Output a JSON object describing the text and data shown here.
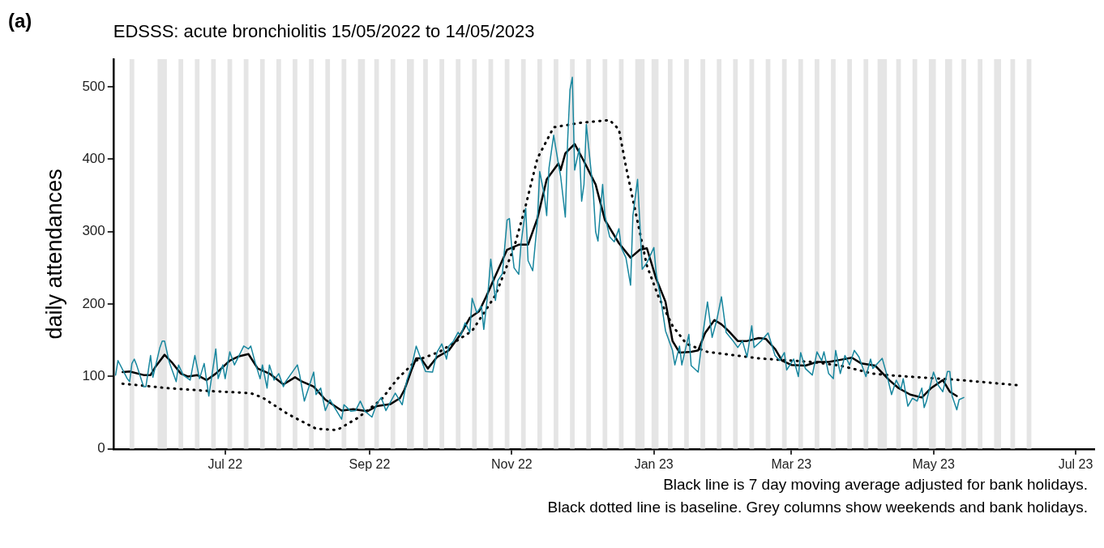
{
  "chart_data": {
    "type": "line",
    "title": "EDSSS: acute bronchiolitis 15/05/2022 to 14/05/2023",
    "ylabel": "daily attendances",
    "annotations": [
      "(a)",
      "Black line is 7 day moving average adjusted for bank holidays.",
      "Black dotted line is baseline. Grey columns show weekends and bank holidays."
    ],
    "xlim": [
      "2022-05-14",
      "2023-07-09"
    ],
    "xticks": [
      {
        "value": "2022-07-01",
        "label": "Jul 22"
      },
      {
        "value": "2022-09-01",
        "label": "Sep 22"
      },
      {
        "value": "2022-11-01",
        "label": "Nov 22"
      },
      {
        "value": "2023-01-01",
        "label": "Jan 23"
      },
      {
        "value": "2023-03-01",
        "label": "Mar 23"
      },
      {
        "value": "2023-05-01",
        "label": "May 23"
      },
      {
        "value": "2023-07-01",
        "label": "Jul 23"
      }
    ],
    "ylim": [
      0,
      538
    ],
    "yticks": [
      0,
      100,
      200,
      300,
      400,
      500
    ],
    "grid": false,
    "legend": false,
    "series": [
      {
        "color": "#17869e",
        "line_style": "solid",
        "x": [
          "2022-05-15",
          "2022-05-16",
          "2022-05-20",
          "2022-05-21",
          "2022-05-22",
          "2022-05-23",
          "2022-05-24",
          "2022-05-27",
          "2022-05-28",
          "2022-05-30",
          "2022-05-31",
          "2022-06-03",
          "2022-06-04",
          "2022-06-05",
          "2022-06-07",
          "2022-06-10",
          "2022-06-11",
          "2022-06-13",
          "2022-06-16",
          "2022-06-18",
          "2022-06-20",
          "2022-06-22",
          "2022-06-24",
          "2022-06-27",
          "2022-06-28",
          "2022-06-30",
          "2022-07-01",
          "2022-07-03",
          "2022-07-05",
          "2022-07-09",
          "2022-07-11",
          "2022-07-12",
          "2022-07-14",
          "2022-07-16",
          "2022-07-17",
          "2022-07-19",
          "2022-07-20",
          "2022-07-22",
          "2022-07-24",
          "2022-07-26",
          "2022-07-27",
          "2022-08-01",
          "2022-08-02",
          "2022-08-04",
          "2022-08-08",
          "2022-08-09",
          "2022-08-11",
          "2022-08-13",
          "2022-08-15",
          "2022-08-17",
          "2022-08-20",
          "2022-08-21",
          "2022-08-24",
          "2022-08-26",
          "2022-08-28",
          "2022-08-30",
          "2022-09-02",
          "2022-09-04",
          "2022-09-06",
          "2022-09-08",
          "2022-09-12",
          "2022-09-15",
          "2022-09-17",
          "2022-09-19",
          "2022-09-21",
          "2022-09-25",
          "2022-09-28",
          "2022-09-30",
          "2022-10-02",
          "2022-10-04",
          "2022-10-05",
          "2022-10-07",
          "2022-10-09",
          "2022-10-10",
          "2022-10-12",
          "2022-10-14",
          "2022-10-15",
          "2022-10-17",
          "2022-10-19",
          "2022-10-20",
          "2022-10-22",
          "2022-10-23",
          "2022-10-25",
          "2022-10-26",
          "2022-10-28",
          "2022-10-30",
          "2022-10-31",
          "2022-11-01",
          "2022-11-02",
          "2022-11-04",
          "2022-11-05",
          "2022-11-07",
          "2022-11-08",
          "2022-11-10",
          "2022-11-12",
          "2022-11-13",
          "2022-11-15",
          "2022-11-16",
          "2022-11-17",
          "2022-11-19",
          "2022-11-21",
          "2022-11-22",
          "2022-11-24",
          "2022-11-25",
          "2022-11-26",
          "2022-11-27",
          "2022-11-28",
          "2022-11-30",
          "2022-12-01",
          "2022-12-02",
          "2022-12-03",
          "2022-12-05",
          "2022-12-06",
          "2022-12-07",
          "2022-12-08",
          "2022-12-10",
          "2022-12-11",
          "2022-12-13",
          "2022-12-15",
          "2022-12-17",
          "2022-12-18",
          "2022-12-20",
          "2022-12-22",
          "2022-12-23",
          "2022-12-25",
          "2022-12-27",
          "2022-12-29",
          "2023-01-01",
          "2023-01-02",
          "2023-01-04",
          "2023-01-06",
          "2023-01-09",
          "2023-01-10",
          "2023-01-12",
          "2023-01-13",
          "2023-01-16",
          "2023-01-17",
          "2023-01-20",
          "2023-01-22",
          "2023-01-24",
          "2023-01-26",
          "2023-01-28",
          "2023-01-30",
          "2023-02-01",
          "2023-02-04",
          "2023-02-06",
          "2023-02-08",
          "2023-02-10",
          "2023-02-12",
          "2023-02-13",
          "2023-02-16",
          "2023-02-19",
          "2023-02-22",
          "2023-02-24",
          "2023-02-26",
          "2023-02-27",
          "2023-03-02",
          "2023-03-04",
          "2023-03-05",
          "2023-03-07",
          "2023-03-10",
          "2023-03-12",
          "2023-03-14",
          "2023-03-15",
          "2023-03-17",
          "2023-03-19",
          "2023-03-20",
          "2023-03-22",
          "2023-03-24",
          "2023-03-26",
          "2023-03-28",
          "2023-03-30",
          "2023-04-02",
          "2023-04-04",
          "2023-04-05",
          "2023-04-09",
          "2023-04-11",
          "2023-04-13",
          "2023-04-15",
          "2023-04-17",
          "2023-04-18",
          "2023-04-20",
          "2023-04-22",
          "2023-04-24",
          "2023-04-26",
          "2023-04-27",
          "2023-04-28",
          "2023-05-01",
          "2023-05-03",
          "2023-05-05",
          "2023-05-07",
          "2023-05-08",
          "2023-05-09",
          "2023-05-11",
          "2023-05-12",
          "2023-05-14"
        ],
        "values": [
          102,
          122,
          97,
          93,
          118,
          124,
          116,
          86,
          86,
          129,
          99,
          140,
          149,
          149,
          120,
          93,
          116,
          102,
          95,
          129,
          97,
          118,
          73,
          138,
          97,
          116,
          97,
          134,
          116,
          142,
          138,
          142,
          118,
          97,
          116,
          84,
          116,
          95,
          104,
          86,
          93,
          116,
          102,
          66,
          106,
          75,
          84,
          53,
          68,
          57,
          41,
          61,
          52,
          53,
          66,
          52,
          44,
          62,
          71,
          53,
          77,
          61,
          95,
          113,
          142,
          107,
          106,
          134,
          145,
          124,
          142,
          149,
          161,
          156,
          174,
          161,
          208,
          188,
          197,
          165,
          223,
          262,
          205,
          232,
          242,
          316,
          318,
          278,
          250,
          241,
          284,
          332,
          260,
          246,
          314,
          383,
          350,
          322,
          388,
          433,
          394,
          376,
          320,
          426,
          496,
          513,
          385,
          415,
          342,
          365,
          448,
          385,
          354,
          300,
          287,
          365,
          322,
          293,
          286,
          304,
          278,
          264,
          226,
          322,
          372,
          248,
          257,
          278,
          242,
          206,
          163,
          136,
          116,
          142,
          116,
          158,
          115,
          106,
          158,
          203,
          154,
          178,
          210,
          161,
          149,
          140,
          149,
          127,
          170,
          140,
          149,
          160,
          129,
          122,
          133,
          109,
          124,
          100,
          133,
          111,
          102,
          134,
          122,
          134,
          104,
          97,
          136,
          104,
          129,
          116,
          136,
          127,
          100,
          124,
          111,
          125,
          102,
          75,
          95,
          82,
          97,
          59,
          70,
          66,
          84,
          57,
          66,
          106,
          88,
          79,
          107,
          107,
          73,
          54,
          68,
          71
        ]
      },
      {
        "color": "#000000",
        "line_style": "solid",
        "x": [
          "2022-05-18",
          "2022-05-21",
          "2022-05-27",
          "2022-05-30",
          "2022-06-01",
          "2022-06-05",
          "2022-06-08",
          "2022-06-12",
          "2022-06-15",
          "2022-06-19",
          "2022-06-23",
          "2022-06-27",
          "2022-06-30",
          "2022-07-03",
          "2022-07-07",
          "2022-07-11",
          "2022-07-15",
          "2022-07-20",
          "2022-07-26",
          "2022-07-31",
          "2022-08-03",
          "2022-08-08",
          "2022-08-13",
          "2022-08-20",
          "2022-08-25",
          "2022-08-31",
          "2022-09-04",
          "2022-09-10",
          "2022-09-14",
          "2022-09-16",
          "2022-09-19",
          "2022-09-21",
          "2022-09-23",
          "2022-09-26",
          "2022-09-30",
          "2022-10-05",
          "2022-10-10",
          "2022-10-14",
          "2022-10-18",
          "2022-10-21",
          "2022-10-25",
          "2022-10-30",
          "2022-11-04",
          "2022-11-08",
          "2022-11-12",
          "2022-11-16",
          "2022-11-21",
          "2022-11-22",
          "2022-11-24",
          "2022-11-28",
          "2022-12-02",
          "2022-12-07",
          "2022-12-11",
          "2022-12-17",
          "2022-12-22",
          "2022-12-26",
          "2022-12-29",
          "2023-01-02",
          "2023-01-06",
          "2023-01-09",
          "2023-01-12",
          "2023-01-17",
          "2023-01-20",
          "2023-01-23",
          "2023-01-27",
          "2023-01-30",
          "2023-02-02",
          "2023-02-06",
          "2023-02-10",
          "2023-02-15",
          "2023-02-18",
          "2023-02-22",
          "2023-02-25",
          "2023-03-01",
          "2023-03-07",
          "2023-03-12",
          "2023-03-17",
          "2023-03-22",
          "2023-03-27",
          "2023-03-31",
          "2023-04-06",
          "2023-04-12",
          "2023-04-16",
          "2023-04-21",
          "2023-04-26",
          "2023-04-30",
          "2023-05-05",
          "2023-05-08",
          "2023-05-11"
        ],
        "values": [
          106,
          107,
          102,
          102,
          113,
          130,
          120,
          104,
          100,
          102,
          95,
          104,
          113,
          122,
          128,
          131,
          111,
          104,
          89,
          99,
          93,
          86,
          68,
          53,
          55,
          52,
          59,
          62,
          70,
          82,
          109,
          125,
          125,
          111,
          127,
          136,
          158,
          181,
          190,
          210,
          239,
          275,
          282,
          282,
          318,
          372,
          394,
          385,
          408,
          421,
          397,
          365,
          316,
          284,
          264,
          275,
          277,
          235,
          203,
          149,
          133,
          134,
          136,
          160,
          178,
          172,
          163,
          149,
          149,
          153,
          152,
          138,
          122,
          116,
          115,
          120,
          120,
          123,
          126,
          118,
          115,
          95,
          84,
          75,
          71,
          84,
          95,
          79,
          73
        ]
      },
      {
        "color": "#000000",
        "line_style": "dotted",
        "x": [
          "2022-05-18",
          "2022-05-28",
          "2022-06-06",
          "2022-06-24",
          "2022-07-12",
          "2022-07-17",
          "2022-07-28",
          "2022-08-09",
          "2022-08-18",
          "2022-08-27",
          "2022-09-06",
          "2022-09-13",
          "2022-09-21",
          "2022-10-01",
          "2022-10-15",
          "2022-10-25",
          "2022-11-02",
          "2022-11-07",
          "2022-11-12",
          "2022-11-19",
          "2022-11-30",
          "2022-12-13",
          "2022-12-17",
          "2022-12-20",
          "2022-12-24",
          "2022-12-29",
          "2023-01-03",
          "2023-01-09",
          "2023-01-15",
          "2023-01-24",
          "2023-02-15",
          "2023-03-10",
          "2023-03-22",
          "2023-04-05",
          "2023-04-15",
          "2023-05-13",
          "2023-06-06"
        ],
        "values": [
          90,
          87,
          84,
          80,
          77,
          71,
          48,
          28,
          26,
          43,
          68,
          97,
          122,
          134,
          163,
          212,
          278,
          336,
          401,
          444,
          450,
          454,
          441,
          390,
          329,
          253,
          210,
          170,
          145,
          134,
          125,
          120,
          115,
          104,
          101,
          95,
          88
        ]
      }
    ],
    "bands": [
      {
        "axis": "x",
        "from": "2022-05-21",
        "to": "2022-05-23",
        "color": "#e5e5e5"
      },
      {
        "axis": "x",
        "from": "2022-06-02",
        "to": "2022-06-06",
        "color": "#e5e5e5"
      },
      {
        "axis": "x",
        "from": "2022-06-11",
        "to": "2022-06-13",
        "color": "#e5e5e5"
      },
      {
        "axis": "x",
        "from": "2022-06-18",
        "to": "2022-06-20",
        "color": "#e5e5e5"
      },
      {
        "axis": "x",
        "from": "2022-06-25",
        "to": "2022-06-27",
        "color": "#e5e5e5"
      },
      {
        "axis": "x",
        "from": "2022-07-02",
        "to": "2022-07-04",
        "color": "#e5e5e5"
      },
      {
        "axis": "x",
        "from": "2022-07-09",
        "to": "2022-07-11",
        "color": "#e5e5e5"
      },
      {
        "axis": "x",
        "from": "2022-07-16",
        "to": "2022-07-18",
        "color": "#e5e5e5"
      },
      {
        "axis": "x",
        "from": "2022-07-23",
        "to": "2022-07-25",
        "color": "#e5e5e5"
      },
      {
        "axis": "x",
        "from": "2022-07-30",
        "to": "2022-08-01",
        "color": "#e5e5e5"
      },
      {
        "axis": "x",
        "from": "2022-08-06",
        "to": "2022-08-08",
        "color": "#e5e5e5"
      },
      {
        "axis": "x",
        "from": "2022-08-13",
        "to": "2022-08-15",
        "color": "#e5e5e5"
      },
      {
        "axis": "x",
        "from": "2022-08-20",
        "to": "2022-08-22",
        "color": "#e5e5e5"
      },
      {
        "axis": "x",
        "from": "2022-08-27",
        "to": "2022-08-30",
        "color": "#e5e5e5"
      },
      {
        "axis": "x",
        "from": "2022-09-03",
        "to": "2022-09-05",
        "color": "#e5e5e5"
      },
      {
        "axis": "x",
        "from": "2022-09-10",
        "to": "2022-09-12",
        "color": "#e5e5e5"
      },
      {
        "axis": "x",
        "from": "2022-09-17",
        "to": "2022-09-20",
        "color": "#e5e5e5"
      },
      {
        "axis": "x",
        "from": "2022-09-24",
        "to": "2022-09-26",
        "color": "#e5e5e5"
      },
      {
        "axis": "x",
        "from": "2022-10-01",
        "to": "2022-10-03",
        "color": "#e5e5e5"
      },
      {
        "axis": "x",
        "from": "2022-10-08",
        "to": "2022-10-10",
        "color": "#e5e5e5"
      },
      {
        "axis": "x",
        "from": "2022-10-15",
        "to": "2022-10-17",
        "color": "#e5e5e5"
      },
      {
        "axis": "x",
        "from": "2022-10-22",
        "to": "2022-10-24",
        "color": "#e5e5e5"
      },
      {
        "axis": "x",
        "from": "2022-10-29",
        "to": "2022-10-31",
        "color": "#e5e5e5"
      },
      {
        "axis": "x",
        "from": "2022-11-05",
        "to": "2022-11-07",
        "color": "#e5e5e5"
      },
      {
        "axis": "x",
        "from": "2022-11-12",
        "to": "2022-11-14",
        "color": "#e5e5e5"
      },
      {
        "axis": "x",
        "from": "2022-11-19",
        "to": "2022-11-21",
        "color": "#e5e5e5"
      },
      {
        "axis": "x",
        "from": "2022-11-26",
        "to": "2022-11-28",
        "color": "#e5e5e5"
      },
      {
        "axis": "x",
        "from": "2022-12-03",
        "to": "2022-12-05",
        "color": "#e5e5e5"
      },
      {
        "axis": "x",
        "from": "2022-12-10",
        "to": "2022-12-12",
        "color": "#e5e5e5"
      },
      {
        "axis": "x",
        "from": "2022-12-17",
        "to": "2022-12-19",
        "color": "#e5e5e5"
      },
      {
        "axis": "x",
        "from": "2022-12-24",
        "to": "2022-12-28",
        "color": "#e5e5e5"
      },
      {
        "axis": "x",
        "from": "2022-12-31",
        "to": "2023-01-03",
        "color": "#e5e5e5"
      },
      {
        "axis": "x",
        "from": "2023-01-07",
        "to": "2023-01-09",
        "color": "#e5e5e5"
      },
      {
        "axis": "x",
        "from": "2023-01-14",
        "to": "2023-01-16",
        "color": "#e5e5e5"
      },
      {
        "axis": "x",
        "from": "2023-01-21",
        "to": "2023-01-23",
        "color": "#e5e5e5"
      },
      {
        "axis": "x",
        "from": "2023-01-28",
        "to": "2023-01-30",
        "color": "#e5e5e5"
      },
      {
        "axis": "x",
        "from": "2023-02-04",
        "to": "2023-02-06",
        "color": "#e5e5e5"
      },
      {
        "axis": "x",
        "from": "2023-02-11",
        "to": "2023-02-13",
        "color": "#e5e5e5"
      },
      {
        "axis": "x",
        "from": "2023-02-18",
        "to": "2023-02-20",
        "color": "#e5e5e5"
      },
      {
        "axis": "x",
        "from": "2023-02-25",
        "to": "2023-02-27",
        "color": "#e5e5e5"
      },
      {
        "axis": "x",
        "from": "2023-03-04",
        "to": "2023-03-06",
        "color": "#e5e5e5"
      },
      {
        "axis": "x",
        "from": "2023-03-11",
        "to": "2023-03-13",
        "color": "#e5e5e5"
      },
      {
        "axis": "x",
        "from": "2023-03-18",
        "to": "2023-03-20",
        "color": "#e5e5e5"
      },
      {
        "axis": "x",
        "from": "2023-03-25",
        "to": "2023-03-27",
        "color": "#e5e5e5"
      },
      {
        "axis": "x",
        "from": "2023-04-01",
        "to": "2023-04-03",
        "color": "#e5e5e5"
      },
      {
        "axis": "x",
        "from": "2023-04-07",
        "to": "2023-04-11",
        "color": "#e5e5e5"
      },
      {
        "axis": "x",
        "from": "2023-04-15",
        "to": "2023-04-17",
        "color": "#e5e5e5"
      },
      {
        "axis": "x",
        "from": "2023-04-22",
        "to": "2023-04-24",
        "color": "#e5e5e5"
      },
      {
        "axis": "x",
        "from": "2023-04-29",
        "to": "2023-05-02",
        "color": "#e5e5e5"
      },
      {
        "axis": "x",
        "from": "2023-05-06",
        "to": "2023-05-09",
        "color": "#e5e5e5"
      },
      {
        "axis": "x",
        "from": "2023-05-13",
        "to": "2023-05-15",
        "color": "#e5e5e5"
      },
      {
        "axis": "x",
        "from": "2023-05-20",
        "to": "2023-05-22",
        "color": "#e5e5e5"
      },
      {
        "axis": "x",
        "from": "2023-05-27",
        "to": "2023-05-30",
        "color": "#e5e5e5"
      },
      {
        "axis": "x",
        "from": "2023-06-03",
        "to": "2023-06-05",
        "color": "#e5e5e5"
      },
      {
        "axis": "x",
        "from": "2023-06-10",
        "to": "2023-06-12",
        "color": "#e5e5e5"
      }
    ]
  }
}
